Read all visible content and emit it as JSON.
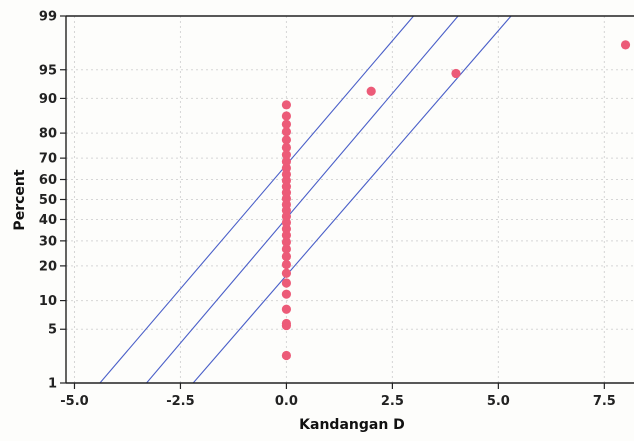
{
  "chart_data": {
    "type": "scatter",
    "subtype": "normal-probability-plot",
    "title": "",
    "xlabel": "Kandangan D",
    "ylabel": "Percent",
    "xlim": [
      -5.2,
      8.2
    ],
    "ylim": [
      1,
      99
    ],
    "y_scale": "normal-probability",
    "grid": true,
    "x_ticks": [
      {
        "value": -5.0,
        "label": "-5.0"
      },
      {
        "value": -2.5,
        "label": "-2.5"
      },
      {
        "value": 0.0,
        "label": "0.0"
      },
      {
        "value": 2.5,
        "label": "2.5"
      },
      {
        "value": 5.0,
        "label": "5.0"
      },
      {
        "value": 7.5,
        "label": "7.5"
      }
    ],
    "y_ticks": [
      {
        "value": 1,
        "label": "1"
      },
      {
        "value": 5,
        "label": "5"
      },
      {
        "value": 10,
        "label": "10"
      },
      {
        "value": 20,
        "label": "20"
      },
      {
        "value": 30,
        "label": "30"
      },
      {
        "value": 40,
        "label": "40"
      },
      {
        "value": 50,
        "label": "50"
      },
      {
        "value": 60,
        "label": "60"
      },
      {
        "value": 70,
        "label": "70"
      },
      {
        "value": 80,
        "label": "80"
      },
      {
        "value": 90,
        "label": "90"
      },
      {
        "value": 95,
        "label": "95"
      },
      {
        "value": 99,
        "label": "99"
      }
    ],
    "points": [
      {
        "x": 0.0,
        "y": 2.4
      },
      {
        "x": 0.0,
        "y": 5.5
      },
      {
        "x": 0.0,
        "y": 5.8
      },
      {
        "x": 0.0,
        "y": 8.2
      },
      {
        "x": 0.0,
        "y": 11.5
      },
      {
        "x": 0.0,
        "y": 14.5
      },
      {
        "x": 0.0,
        "y": 17.5
      },
      {
        "x": 0.0,
        "y": 20.5
      },
      {
        "x": 0.0,
        "y": 23.5
      },
      {
        "x": 0.0,
        "y": 26.5
      },
      {
        "x": 0.0,
        "y": 29.5
      },
      {
        "x": 0.0,
        "y": 32.5
      },
      {
        "x": 0.0,
        "y": 35.5
      },
      {
        "x": 0.0,
        "y": 38.5
      },
      {
        "x": 0.0,
        "y": 41.5
      },
      {
        "x": 0.0,
        "y": 44.5
      },
      {
        "x": 0.0,
        "y": 47.5
      },
      {
        "x": 0.0,
        "y": 50.5
      },
      {
        "x": 0.0,
        "y": 53.5
      },
      {
        "x": 0.0,
        "y": 56.5
      },
      {
        "x": 0.0,
        "y": 59.5
      },
      {
        "x": 0.0,
        "y": 62.5
      },
      {
        "x": 0.0,
        "y": 65.5
      },
      {
        "x": 0.0,
        "y": 68.5
      },
      {
        "x": 0.0,
        "y": 71.5
      },
      {
        "x": 0.0,
        "y": 74.5
      },
      {
        "x": 0.0,
        "y": 77.5
      },
      {
        "x": 0.0,
        "y": 80.5
      },
      {
        "x": 0.0,
        "y": 83.0
      },
      {
        "x": 0.0,
        "y": 85.5
      },
      {
        "x": 0.0,
        "y": 88.5
      },
      {
        "x": 2.0,
        "y": 91.5
      },
      {
        "x": 4.0,
        "y": 94.5
      },
      {
        "x": 8.0,
        "y": 97.5
      }
    ],
    "fit_lines": [
      {
        "role": "lower",
        "x_at_1": -4.4,
        "x_at_99": 3.0
      },
      {
        "role": "fit",
        "x_at_1": -3.3,
        "x_at_99": 4.05
      },
      {
        "role": "upper",
        "x_at_1": -2.2,
        "x_at_99": 5.3
      }
    ]
  }
}
